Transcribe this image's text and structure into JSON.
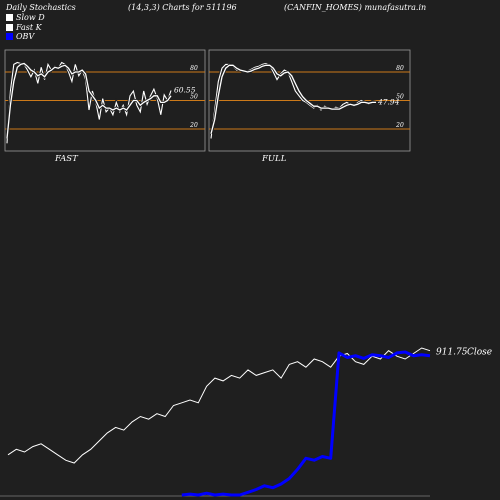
{
  "header": {
    "left": "Daily Stochastics",
    "center": "(14,3,3) Charts for 511196",
    "right": "(CANFIN_HOMES) munafasutra.in"
  },
  "legend": [
    {
      "label": "Slow  D",
      "color": "#ffffff"
    },
    {
      "label": "Fast K",
      "color": "#ffffff"
    },
    {
      "label": "OBV",
      "color": "#0000ff"
    }
  ],
  "colors": {
    "reference_line": "#cc7a1a",
    "panel_bg": "#1f1f1f",
    "obv": "#0000ff",
    "close": "#ffffff"
  },
  "chart_data": [
    {
      "type": "line",
      "panel_label": "FAST",
      "ylim": [
        0,
        100
      ],
      "y_ticks": [
        80,
        50,
        20
      ],
      "reference_lines": [
        80,
        50,
        20
      ],
      "last_value_label": "60.55",
      "series": [
        {
          "name": "Fast K",
          "values": [
            5,
            60,
            88,
            90,
            89,
            88,
            82,
            75,
            82,
            68,
            85,
            72,
            88,
            82,
            86,
            84,
            90,
            88,
            80,
            70,
            88,
            76,
            82,
            72,
            40,
            60,
            48,
            30,
            52,
            38,
            42,
            35,
            48,
            38,
            45,
            35,
            55,
            60,
            45,
            38,
            60,
            46,
            55,
            62,
            52,
            35,
            56,
            50,
            60.55
          ]
        },
        {
          "name": "Slow  D",
          "values": [
            10,
            45,
            70,
            85,
            88,
            89,
            86,
            82,
            80,
            76,
            78,
            75,
            80,
            82,
            85,
            84,
            86,
            87,
            84,
            78,
            80,
            80,
            82,
            78,
            60,
            55,
            50,
            42,
            45,
            42,
            42,
            40,
            42,
            40,
            42,
            40,
            45,
            50,
            50,
            45,
            48,
            50,
            52,
            55,
            55,
            48,
            48,
            50,
            55
          ]
        }
      ]
    },
    {
      "type": "line",
      "panel_label": "FULL",
      "ylim": [
        0,
        100
      ],
      "y_ticks": [
        80,
        50,
        20
      ],
      "reference_lines": [
        80,
        50,
        20
      ],
      "last_value_label": "47.94",
      "series": [
        {
          "name": "Fast K",
          "values": [
            10,
            40,
            70,
            84,
            88,
            88,
            86,
            82,
            82,
            80,
            81,
            83,
            85,
            86,
            88,
            89,
            87,
            80,
            72,
            78,
            82,
            80,
            70,
            60,
            55,
            50,
            48,
            45,
            42,
            45,
            40,
            44,
            42,
            40,
            43,
            42,
            46,
            48,
            46,
            44,
            48,
            50,
            48,
            46,
            49,
            47.94
          ]
        },
        {
          "name": "Slow  D",
          "values": [
            15,
            30,
            55,
            75,
            84,
            87,
            87,
            84,
            82,
            81,
            80,
            81,
            83,
            84,
            86,
            87,
            87,
            84,
            78,
            76,
            79,
            80,
            76,
            68,
            60,
            54,
            50,
            47,
            44,
            44,
            42,
            42,
            42,
            41,
            41,
            41,
            43,
            45,
            46,
            45,
            46,
            48,
            48,
            47,
            48,
            48
          ]
        }
      ]
    },
    {
      "type": "line",
      "series": [
        {
          "name": "Close",
          "values": [
            2,
            4,
            3,
            5,
            6,
            4,
            2,
            0,
            -1,
            2,
            4,
            7,
            10,
            12,
            11,
            14,
            16,
            15,
            17,
            16,
            20,
            21,
            22,
            21,
            27,
            30,
            29,
            31,
            30,
            33,
            31,
            32,
            33,
            30,
            35,
            36,
            34,
            37,
            36,
            34,
            38,
            39,
            36,
            35,
            38,
            37,
            40,
            38,
            37,
            39,
            41,
            40
          ]
        },
        {
          "name": "OBV",
          "values": [
            null,
            null,
            null,
            null,
            null,
            null,
            null,
            null,
            null,
            null,
            null,
            null,
            null,
            null,
            null,
            null,
            null,
            null,
            null,
            null,
            null,
            -60,
            -59,
            -60,
            -58,
            -60,
            -59,
            -60,
            -60,
            -57,
            -54,
            -50,
            -52,
            -48,
            -42,
            -32,
            -20,
            -22,
            -18,
            -20,
            95,
            90,
            92,
            89,
            93,
            92,
            90,
            95,
            96,
            92,
            93,
            92
          ]
        }
      ],
      "last_value_label": "911.75",
      "last_value_suffix": "Close"
    }
  ]
}
